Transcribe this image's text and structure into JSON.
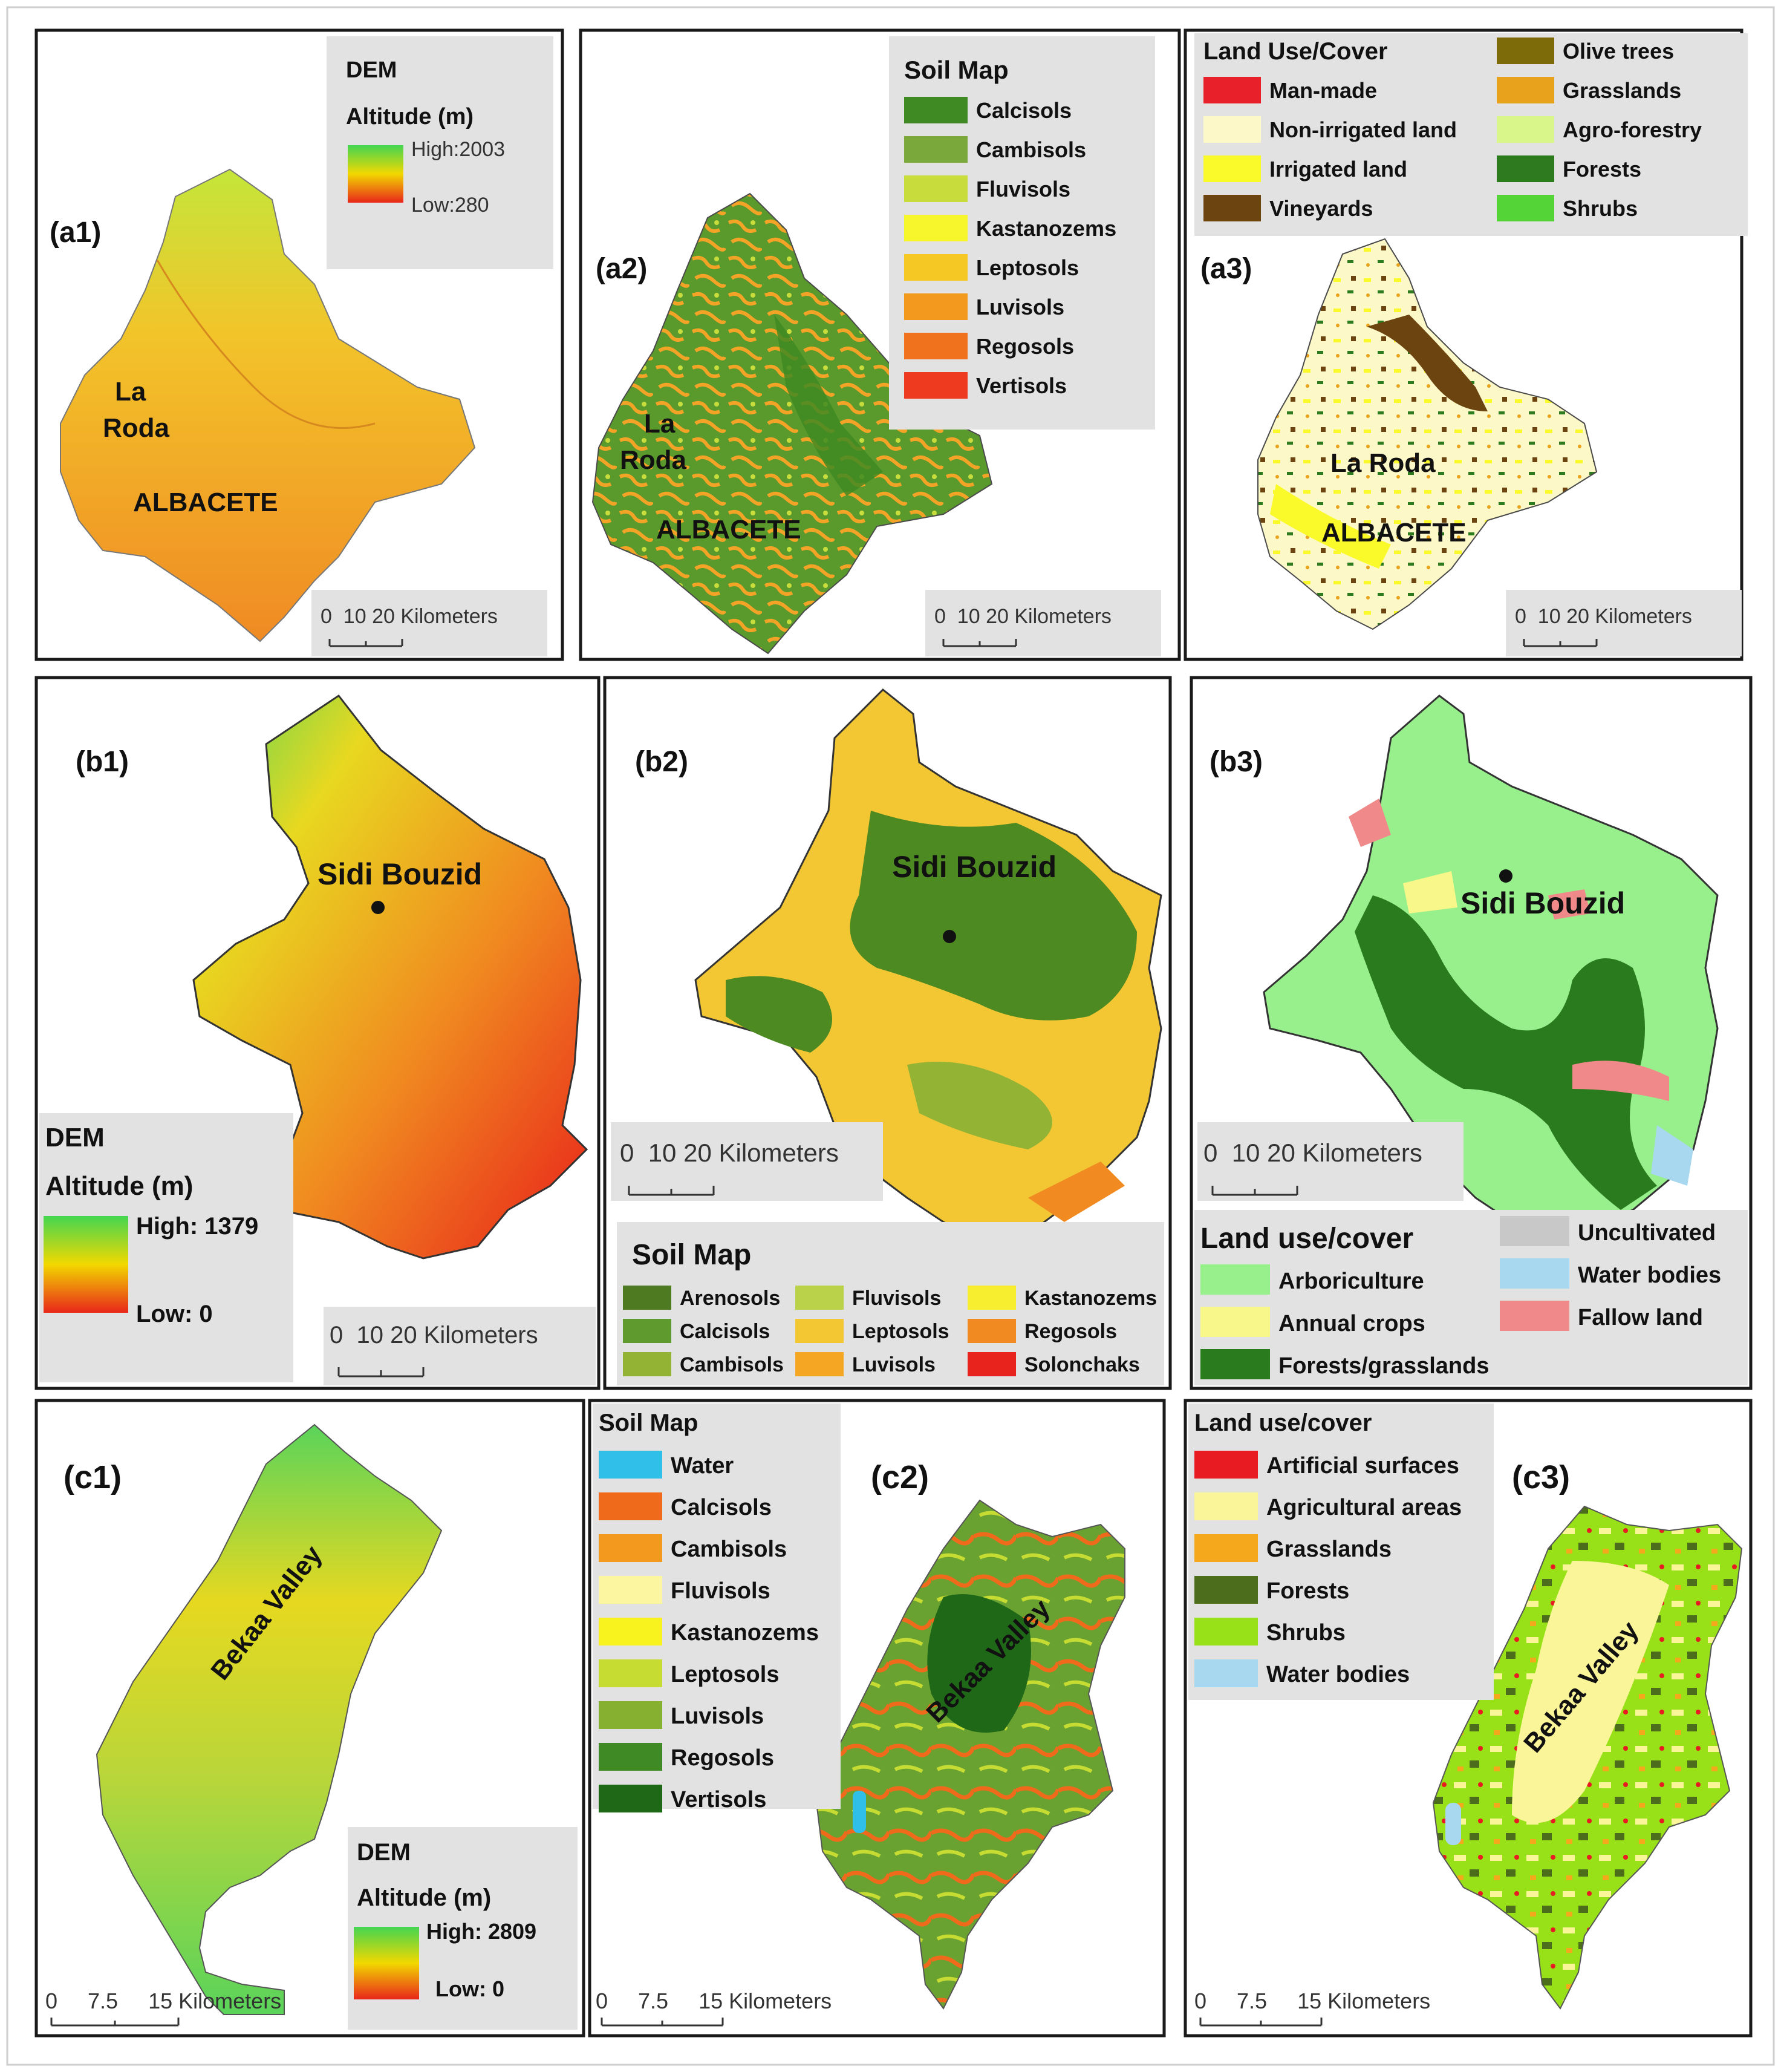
{
  "colors": {
    "dem_high": "#43d651",
    "dem_mid": "#f2d800",
    "dem_low": "#e8261a",
    "legend_bg": "#e2e2e2",
    "frame": "#1a1a1a"
  },
  "row_a": {
    "p1": {
      "label": "(a1)",
      "legend_title": "DEM",
      "legend_sub": "Altitude (m)",
      "high": "High:2003",
      "low": "Low:280",
      "places": [
        "La",
        "Roda",
        "ALBACETE"
      ],
      "scale": "0  10 20 Kilometers"
    },
    "p2": {
      "label": "(a2)",
      "legend_title": "Soil Map",
      "items": [
        {
          "label": "Calcisols",
          "color": "#3f8a22"
        },
        {
          "label": "Cambisols",
          "color": "#7aa83a"
        },
        {
          "label": "Fluvisols",
          "color": "#c8dc3c"
        },
        {
          "label": "Kastanozems",
          "color": "#f7f52c"
        },
        {
          "label": "Leptosols",
          "color": "#f5c823"
        },
        {
          "label": "Luvisols",
          "color": "#f39a1e"
        },
        {
          "label": "Regosols",
          "color": "#f0721c"
        },
        {
          "label": "Vertisols",
          "color": "#ee3a1f"
        }
      ],
      "places": [
        "La",
        "Roda",
        "ALBACETE"
      ],
      "scale": "0  10 20 Kilometers"
    },
    "p3": {
      "label": "(a3)",
      "legend_title": "Land Use/Cover",
      "items_left": [
        {
          "label": "Man-made",
          "color": "#e8202a"
        },
        {
          "label": "Non-irrigated land",
          "color": "#fdf8c8"
        },
        {
          "label": "Irrigated land",
          "color": "#fafa2a"
        },
        {
          "label": "Vineyards",
          "color": "#6b4410"
        }
      ],
      "items_right": [
        {
          "label": "Olive trees",
          "color": "#7d6a08"
        },
        {
          "label": "Grasslands",
          "color": "#e8a21c"
        },
        {
          "label": "Agro-forestry",
          "color": "#d8f68a"
        },
        {
          "label": "Forests",
          "color": "#2e7a1e"
        },
        {
          "label": "Shrubs",
          "color": "#55d438"
        }
      ],
      "places": [
        "La Roda",
        "ALBACETE"
      ],
      "scale": "0  10 20 Kilometers"
    }
  },
  "row_b": {
    "p1": {
      "label": "(b1)",
      "legend_title": "DEM",
      "legend_sub": "Altitude (m)",
      "high": "High: 1379",
      "low": "Low: 0",
      "places": [
        "Sidi Bouzid"
      ],
      "scale": "0  10 20 Kilometers"
    },
    "p2": {
      "label": "(b2)",
      "legend_title": "Soil Map",
      "items": [
        {
          "label": "Arenosols",
          "color": "#4e7a22"
        },
        {
          "label": "Calcisols",
          "color": "#5e9a2e"
        },
        {
          "label": "Cambisols",
          "color": "#93b335"
        },
        {
          "label": "Fluvisols",
          "color": "#b9d24a"
        },
        {
          "label": "Leptosols",
          "color": "#f3c734"
        },
        {
          "label": "Luvisols",
          "color": "#f5a623"
        },
        {
          "label": "Kastanozems",
          "color": "#f6ee2e"
        },
        {
          "label": "Regosols",
          "color": "#f08a21"
        },
        {
          "label": "Solonchaks",
          "color": "#e8231e"
        }
      ],
      "places": [
        "Sidi Bouzid"
      ],
      "scale": "0  10 20 Kilometers"
    },
    "p3": {
      "label": "(b3)",
      "legend_title": "Land use/cover",
      "items_left": [
        {
          "label": "Arboriculture",
          "color": "#98f08c"
        },
        {
          "label": "Annual crops",
          "color": "#f8f88a"
        },
        {
          "label": "Forests/grasslands",
          "color": "#2a7a1e"
        }
      ],
      "items_right": [
        {
          "label": "Uncultivated",
          "color": "#c8c8c8"
        },
        {
          "label": "Water bodies",
          "color": "#a8d8f0"
        },
        {
          "label": "Fallow land",
          "color": "#f08a8a"
        }
      ],
      "places": [
        "Sidi Bouzid"
      ],
      "scale": "0  10 20 Kilometers"
    }
  },
  "row_c": {
    "p1": {
      "label": "(c1)",
      "legend_title": "DEM",
      "legend_sub": "Altitude (m)",
      "high": "High: 2809",
      "low": "Low: 0",
      "places": [
        "Bekaa Valley"
      ],
      "scale": "0     7.5     15 Kilometers"
    },
    "p2": {
      "label": "(c2)",
      "legend_title": "Soil Map",
      "items": [
        {
          "label": "Water",
          "color": "#2fbfe8"
        },
        {
          "label": "Calcisols",
          "color": "#f06a1c"
        },
        {
          "label": "Cambisols",
          "color": "#f39a1e"
        },
        {
          "label": "Fluvisols",
          "color": "#fdf6a0"
        },
        {
          "label": "Kastanozems",
          "color": "#f8f21e"
        },
        {
          "label": "Leptosols",
          "color": "#c6dc32"
        },
        {
          "label": "Luvisols",
          "color": "#86b030"
        },
        {
          "label": "Regosols",
          "color": "#3f8a24"
        },
        {
          "label": "Vertisols",
          "color": "#1e6818"
        }
      ],
      "places": [
        "Bekaa Valley"
      ],
      "scale": "0     7.5     15 Kilometers"
    },
    "p3": {
      "label": "(c3)",
      "legend_title": "Land use/cover",
      "items": [
        {
          "label": "Artificial surfaces",
          "color": "#e81a22"
        },
        {
          "label": "Agricultural areas",
          "color": "#fbf59a"
        },
        {
          "label": "Grasslands",
          "color": "#f5a81c"
        },
        {
          "label": "Forests",
          "color": "#4c6e1c"
        },
        {
          "label": "Shrubs",
          "color": "#98e018"
        },
        {
          "label": "Water bodies",
          "color": "#a8d8f0"
        }
      ],
      "places": [
        "Bekaa Valley"
      ],
      "scale": "0     7.5     15 Kilometers"
    }
  }
}
